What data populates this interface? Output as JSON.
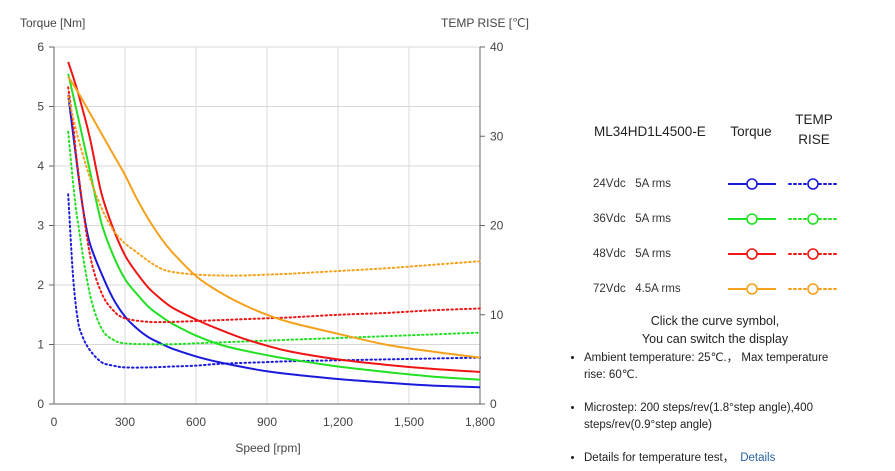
{
  "chart_data": {
    "type": "line",
    "title_left": "Torque  [Nm]",
    "title_right": "TEMP RISE [℃]",
    "xlabel": "Speed [rpm]",
    "xlim": [
      0,
      1800
    ],
    "ylim_left": [
      0,
      6
    ],
    "ylim_right": [
      0,
      40
    ],
    "x_ticks": [
      "0",
      "300",
      "600",
      "900",
      "1,200",
      "1,500",
      "1,800"
    ],
    "y_left_ticks": [
      "0",
      "1",
      "2",
      "3",
      "4",
      "5",
      "6"
    ],
    "y_right_ticks": [
      "0",
      "10",
      "20",
      "30",
      "40"
    ],
    "grid": true,
    "series": [
      {
        "name": "24Vdc 5A rms",
        "color": "#1a1adc",
        "torque": {
          "x": [
            60,
            90,
            120,
            150,
            200,
            250,
            300,
            350,
            400,
            450,
            500,
            600,
            700,
            800,
            900,
            1000,
            1200,
            1400,
            1600,
            1800
          ],
          "y": [
            5.2,
            4.25,
            3.35,
            2.72,
            2.2,
            1.77,
            1.47,
            1.27,
            1.12,
            1.02,
            0.93,
            0.8,
            0.7,
            0.62,
            0.55,
            0.5,
            0.42,
            0.36,
            0.31,
            0.28
          ]
        },
        "temp": {
          "x": [
            60,
            80,
            100,
            120,
            150,
            200,
            250,
            300,
            400,
            500,
            600,
            700,
            800,
            900,
            1000,
            1200,
            1400,
            1600,
            1800
          ],
          "y": [
            23.5,
            14.5,
            9.5,
            7.6,
            6.1,
            4.7,
            4.3,
            4.1,
            4.1,
            4.2,
            4.3,
            4.5,
            4.6,
            4.7,
            4.8,
            4.9,
            5.0,
            5.1,
            5.2
          ]
        }
      },
      {
        "name": "36Vdc 5A rms",
        "color": "#22e022",
        "torque": {
          "x": [
            60,
            100,
            150,
            200,
            250,
            300,
            350,
            400,
            450,
            500,
            600,
            700,
            800,
            900,
            1000,
            1200,
            1400,
            1600,
            1800
          ],
          "y": [
            5.55,
            4.85,
            3.95,
            3.05,
            2.5,
            2.1,
            1.85,
            1.63,
            1.48,
            1.35,
            1.15,
            1.0,
            0.9,
            0.82,
            0.75,
            0.63,
            0.54,
            0.46,
            0.41
          ]
        },
        "temp": {
          "x": [
            60,
            80,
            100,
            150,
            200,
            250,
            300,
            400,
            500,
            600,
            700,
            800,
            900,
            1000,
            1200,
            1400,
            1600,
            1800
          ],
          "y": [
            30.5,
            25.0,
            20.5,
            12.5,
            8.5,
            7.2,
            6.8,
            6.7,
            6.7,
            6.8,
            6.9,
            7.0,
            7.1,
            7.2,
            7.4,
            7.6,
            7.8,
            8.0
          ]
        }
      },
      {
        "name": "48Vdc 5A rms",
        "color": "#f01414",
        "torque": {
          "x": [
            60,
            100,
            150,
            200,
            250,
            300,
            350,
            400,
            450,
            500,
            600,
            700,
            800,
            900,
            1000,
            1200,
            1400,
            1600,
            1800
          ],
          "y": [
            5.75,
            5.25,
            4.5,
            3.55,
            2.95,
            2.5,
            2.2,
            1.95,
            1.77,
            1.62,
            1.42,
            1.25,
            1.1,
            0.98,
            0.88,
            0.75,
            0.66,
            0.59,
            0.54
          ]
        },
        "temp": {
          "x": [
            60,
            80,
            100,
            150,
            200,
            250,
            300,
            400,
            500,
            600,
            700,
            800,
            900,
            1000,
            1200,
            1400,
            1600,
            1800
          ],
          "y": [
            35.5,
            31.5,
            26.5,
            17.0,
            12.5,
            10.5,
            9.6,
            9.2,
            9.2,
            9.3,
            9.4,
            9.5,
            9.6,
            9.7,
            10.0,
            10.2,
            10.5,
            10.7
          ]
        }
      },
      {
        "name": "72Vdc 4.5A rms",
        "color": "#f5a11c",
        "torque": {
          "x": [
            60,
            100,
            150,
            200,
            250,
            300,
            350,
            400,
            450,
            500,
            600,
            700,
            800,
            900,
            1000,
            1200,
            1400,
            1600,
            1800
          ],
          "y": [
            5.5,
            5.25,
            4.9,
            4.55,
            4.2,
            3.85,
            3.45,
            3.1,
            2.8,
            2.55,
            2.15,
            1.88,
            1.67,
            1.5,
            1.37,
            1.18,
            1.0,
            0.88,
            0.78
          ]
        },
        "temp": {
          "x": [
            60,
            100,
            150,
            200,
            250,
            300,
            350,
            400,
            450,
            500,
            600,
            700,
            800,
            900,
            1000,
            1200,
            1400,
            1600,
            1800
          ],
          "y": [
            34.5,
            30.0,
            25.5,
            22.0,
            19.5,
            18.0,
            17.0,
            16.0,
            15.2,
            14.8,
            14.5,
            14.4,
            14.4,
            14.5,
            14.6,
            14.9,
            15.2,
            15.6,
            16.0
          ]
        }
      }
    ]
  },
  "legend": {
    "model": "ML34HD1L4500-E",
    "torque_header": "Torque",
    "temp_header_1": "TEMP",
    "temp_header_2": "RISE",
    "rows": [
      {
        "label": "24Vdc   5A rms"
      },
      {
        "label": "36Vdc   5A rms"
      },
      {
        "label": "48Vdc   5A rms"
      },
      {
        "label": "72Vdc   4.5A rms"
      }
    ],
    "note_line1": "Click the curve symbol,",
    "note_line2": "You can switch the display"
  },
  "notes": {
    "ambient": "Ambient temperature: 25℃.， Max temperature rise: 60℃.",
    "microstep": "Microstep: 200 steps/rev(1.8°step angle),400 steps/rev(0.9°step angle)",
    "details_text": "Details for temperature test，",
    "details_link": "Details"
  }
}
